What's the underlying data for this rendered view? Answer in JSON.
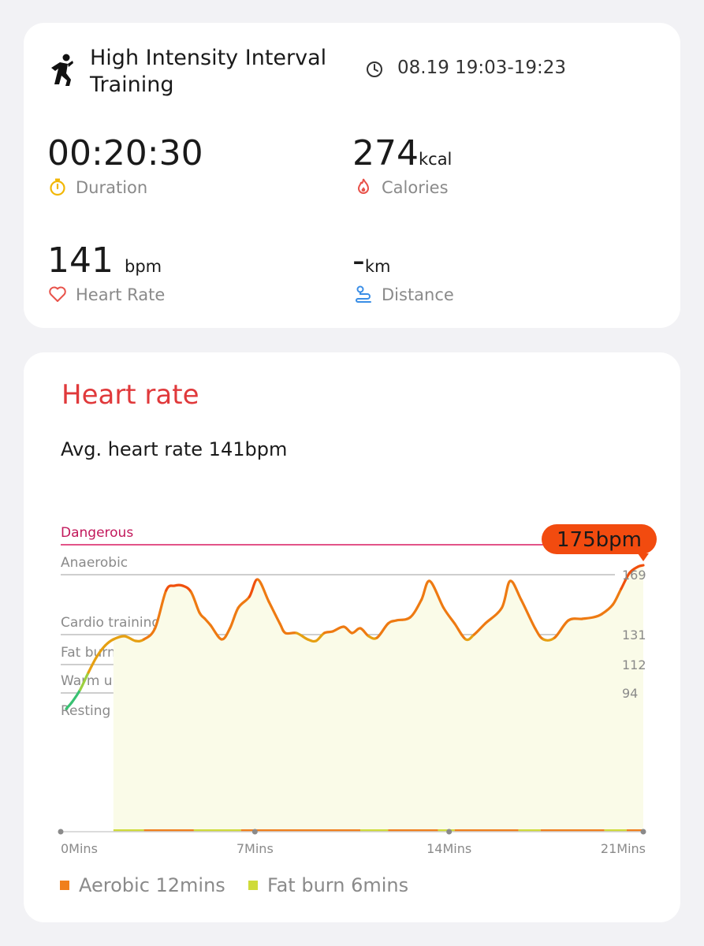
{
  "summary": {
    "workout_title": "High Intensity Interval Training",
    "time_range": "08.19 19:03-19:23",
    "duration": {
      "value": "00:20:30",
      "label": "Duration"
    },
    "calories": {
      "value": "274",
      "unit": "kcal",
      "label": "Calories"
    },
    "heart_rate": {
      "value": "141",
      "unit": "bpm",
      "label": "Heart Rate"
    },
    "distance": {
      "value": "-",
      "unit": "km",
      "label": "Distance"
    },
    "icons": {
      "workout": "hiit-running-icon",
      "clock": "clock-icon",
      "duration": "stopwatch-icon",
      "calories": "flame-icon",
      "heart": "heart-icon",
      "distance": "route-pin-icon"
    }
  },
  "heart_rate_card": {
    "title": "Heart rate",
    "avg_text": "Avg. heart rate 141bpm",
    "max_label": "175bpm",
    "legend": [
      {
        "label": "Aerobic 12mins",
        "color": "#f07f1c"
      },
      {
        "label": "Fat burn 6mins",
        "color": "#cfdb3a"
      }
    ]
  },
  "chart_data": {
    "type": "line",
    "x_unit": "Mins",
    "xlim": [
      0,
      21
    ],
    "ylim": [
      30,
      190
    ],
    "x_ticks": [
      "0Mins",
      "7Mins",
      "14Mins",
      "21Mins"
    ],
    "y_ticks": [
      94,
      112,
      131,
      169
    ],
    "zones": [
      {
        "name": "Dangerous",
        "threshold": 188,
        "color": "#d81b60"
      },
      {
        "name": "Anaerobic",
        "threshold": 169,
        "color": "#b0b0b0"
      },
      {
        "name": "Cardio training",
        "threshold": 131,
        "color": "#b0b0b0"
      },
      {
        "name": "Fat burning",
        "threshold": 112,
        "color": "#b0b0b0"
      },
      {
        "name": "Warm up",
        "threshold": 94,
        "color": "#b0b0b0"
      },
      {
        "name": "Resting",
        "threshold": 30,
        "color": "#b0b0b0"
      }
    ],
    "max_value": 175,
    "series": [
      {
        "x": [
          0.2,
          0.4,
          0.7,
          1.0,
          1.3,
          1.6,
          1.9,
          2.3,
          2.7,
          3.0,
          3.4,
          3.8,
          4.1,
          4.4,
          4.7,
          5.0,
          5.2,
          5.4,
          5.8,
          6.1,
          6.4,
          6.8,
          7.1,
          7.5,
          7.9,
          8.1,
          8.5,
          8.9,
          9.2,
          9.5,
          9.8,
          10.2,
          10.5,
          10.8,
          11.1,
          11.4,
          11.8,
          12.1,
          12.6,
          13.0,
          13.3,
          13.8,
          14.2,
          14.6,
          14.9,
          15.3,
          15.9,
          16.2,
          16.6,
          17.1,
          17.4,
          17.8,
          18.3,
          18.8,
          19.2,
          19.5,
          19.9,
          20.2,
          20.5,
          20.8,
          21.0
        ],
        "values": [
          84,
          88,
          96,
          107,
          117,
          124,
          128,
          130,
          127,
          128,
          135,
          159,
          162,
          162,
          158,
          145,
          141,
          137,
          128,
          135,
          148,
          155,
          166,
          152,
          138,
          132,
          132,
          128,
          127,
          132,
          133,
          136,
          132,
          135,
          130,
          129,
          138,
          140,
          142,
          153,
          165,
          148,
          138,
          128,
          131,
          138,
          148,
          165,
          153,
          135,
          128,
          129,
          140,
          141,
          142,
          144,
          150,
          160,
          170,
          174,
          175
        ]
      }
    ]
  }
}
